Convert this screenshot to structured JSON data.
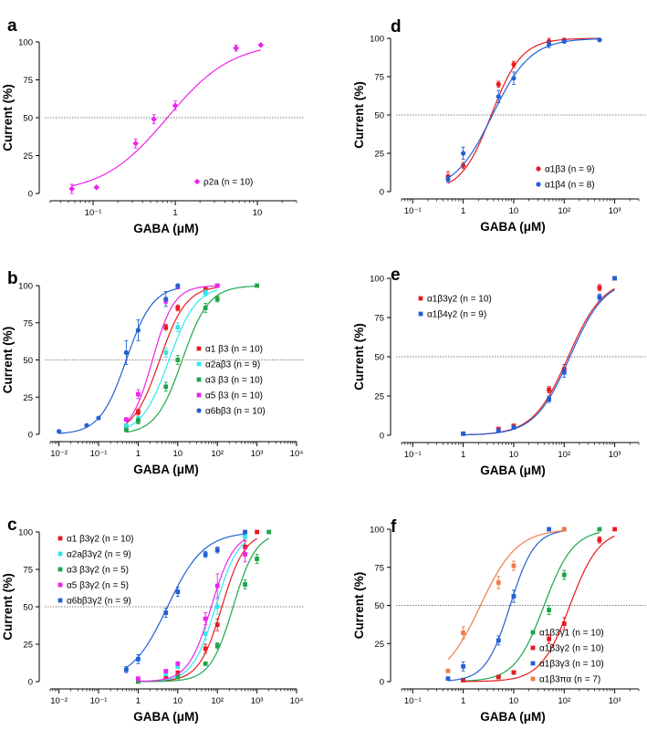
{
  "figure": {
    "colors": {
      "magenta": "#ee22ee",
      "red": "#e8191e",
      "blue": "#2160d4",
      "cyan": "#33e6ec",
      "green": "#1ea54a",
      "orange": "#f07a4a"
    }
  },
  "chart_data": [
    {
      "panel": "a",
      "type": "scatter",
      "xlabel": "GABA (μM)",
      "ylabel": "Current (%)",
      "xscale": "log",
      "xlim": [
        0.03,
        30
      ],
      "ylim": [
        0,
        100
      ],
      "xticks": [
        {
          "value": 0.1,
          "label": "10⁻¹"
        },
        {
          "value": 1,
          "label": "1"
        },
        {
          "value": 10,
          "label": "10"
        }
      ],
      "yticks": [
        0,
        25,
        50,
        75,
        100
      ],
      "reference_line_y": 50,
      "legend_position": "bottom-right",
      "series": [
        {
          "name": "ρ2a (n = 10)",
          "color": "#ee22ee",
          "marker": "diamond",
          "ec50": 0.8,
          "hill": 1.1,
          "points": [
            [
              0.055,
              3,
              3
            ],
            [
              0.11,
              4,
              0
            ],
            [
              0.33,
              33,
              3
            ],
            [
              0.55,
              49,
              3
            ],
            [
              1,
              58,
              3
            ],
            [
              5.5,
              96,
              2
            ],
            [
              11,
              98,
              0
            ]
          ]
        }
      ]
    },
    {
      "panel": "b",
      "type": "scatter",
      "xlabel": "GABA (μM)",
      "ylabel": "Current (%)",
      "xscale": "log",
      "xlim": [
        0.006,
        10000
      ],
      "ylim": [
        0,
        100
      ],
      "xticks": [
        {
          "value": 0.01,
          "label": "10⁻²"
        },
        {
          "value": 0.1,
          "label": "10⁻¹"
        },
        {
          "value": 1,
          "label": "1"
        },
        {
          "value": 10,
          "label": "10"
        },
        {
          "value": 100,
          "label": "10²"
        },
        {
          "value": 1000,
          "label": "10³"
        },
        {
          "value": 10000,
          "label": "10⁴"
        }
      ],
      "yticks": [
        0,
        25,
        50,
        75,
        100
      ],
      "reference_line_y": 50,
      "legend_position": "bottom-right",
      "series": [
        {
          "name": "α1 β3 (n = 10)",
          "color": "#e8191e",
          "marker": "square",
          "ec50": 3.5,
          "hill": 1.3,
          "points": [
            [
              0.5,
              5,
              0
            ],
            [
              1,
              15,
              2
            ],
            [
              5,
              72,
              2
            ],
            [
              10,
              85,
              2
            ],
            [
              50,
              98,
              1
            ],
            [
              100,
              100,
              0
            ]
          ]
        },
        {
          "name": "α2aβ3 (n = 9)",
          "color": "#33e6ec",
          "marker": "square",
          "ec50": 6,
          "hill": 1.25,
          "points": [
            [
              0.5,
              6,
              0
            ],
            [
              1,
              10,
              2
            ],
            [
              5,
              55,
              3
            ],
            [
              10,
              72,
              3
            ],
            [
              50,
              95,
              2
            ],
            [
              100,
              100,
              0
            ]
          ]
        },
        {
          "name": "α3 β3 (n = 10)",
          "color": "#1ea54a",
          "marker": "square",
          "ec50": 13,
          "hill": 1.3,
          "points": [
            [
              0.5,
              3,
              0
            ],
            [
              1,
              9,
              2
            ],
            [
              5,
              32,
              3
            ],
            [
              10,
              50,
              3
            ],
            [
              50,
              85,
              3
            ],
            [
              100,
              91,
              2
            ],
            [
              1000,
              100,
              0
            ]
          ]
        },
        {
          "name": "α5 β3 (n = 10)",
          "color": "#ee22ee",
          "marker": "square",
          "ec50": 2.3,
          "hill": 1.6,
          "points": [
            [
              0.5,
              10,
              0
            ],
            [
              1,
              27,
              3
            ],
            [
              5,
              90,
              2
            ],
            [
              10,
              99,
              1
            ],
            [
              100,
              100,
              0
            ]
          ]
        },
        {
          "name": "α6bβ3 (n = 10)",
          "color": "#2160d4",
          "marker": "circle",
          "ec50": 0.5,
          "hill": 1.3,
          "points": [
            [
              0.01,
              2,
              0
            ],
            [
              0.05,
              6,
              0
            ],
            [
              0.1,
              11,
              0
            ],
            [
              0.5,
              55,
              8
            ],
            [
              1,
              70,
              7
            ],
            [
              5,
              91,
              5
            ],
            [
              10,
              100,
              0
            ]
          ]
        }
      ]
    },
    {
      "panel": "c",
      "type": "scatter",
      "xlabel": "GABA (μM)",
      "ylabel": "Current (%)",
      "xscale": "log",
      "xlim": [
        0.006,
        10000
      ],
      "ylim": [
        0,
        100
      ],
      "xticks": [
        {
          "value": 0.01,
          "label": "10⁻²"
        },
        {
          "value": 0.1,
          "label": "10⁻¹"
        },
        {
          "value": 1,
          "label": "1"
        },
        {
          "value": 10,
          "label": "10"
        },
        {
          "value": 100,
          "label": "10²"
        },
        {
          "value": 1000,
          "label": "10³"
        },
        {
          "value": 10000,
          "label": "10⁴"
        }
      ],
      "yticks": [
        0,
        25,
        50,
        75,
        100
      ],
      "reference_line_y": 50,
      "legend_position": "top-left",
      "series": [
        {
          "name": "α1 β3γ2 (n = 10)",
          "color": "#e8191e",
          "marker": "square",
          "ec50": 130,
          "hill": 1.5,
          "points": [
            [
              1,
              1,
              0
            ],
            [
              5,
              3,
              0
            ],
            [
              10,
              6,
              0
            ],
            [
              50,
              22,
              3
            ],
            [
              100,
              38,
              4
            ],
            [
              500,
              90,
              4
            ],
            [
              1000,
              100,
              0
            ]
          ]
        },
        {
          "name": "α2aβ3γ2 (n = 9)",
          "color": "#33e6ec",
          "marker": "square",
          "ec50": 90,
          "hill": 1.5,
          "points": [
            [
              1,
              1,
              0
            ],
            [
              5,
              5,
              0
            ],
            [
              10,
              10,
              0
            ],
            [
              50,
              32,
              4
            ],
            [
              100,
              50,
              5
            ],
            [
              500,
              97,
              2
            ]
          ]
        },
        {
          "name": "α3 β3γ2 (n = 5)",
          "color": "#1ea54a",
          "marker": "square",
          "ec50": 250,
          "hill": 1.5,
          "points": [
            [
              1,
              0,
              0
            ],
            [
              10,
              3,
              0
            ],
            [
              50,
              12,
              0
            ],
            [
              100,
              24,
              2
            ],
            [
              500,
              65,
              3
            ],
            [
              1000,
              82,
              3
            ],
            [
              2000,
              100,
              0
            ]
          ]
        },
        {
          "name": "α5 β3γ2 (n = 5)",
          "color": "#ee22ee",
          "marker": "square",
          "ec50": 70,
          "hill": 1.5,
          "points": [
            [
              1,
              2,
              0
            ],
            [
              5,
              7,
              0
            ],
            [
              10,
              12,
              0
            ],
            [
              50,
              42,
              4
            ],
            [
              100,
              64,
              8
            ],
            [
              500,
              85,
              5
            ]
          ]
        },
        {
          "name": "α6bβ3γ2 (n = 9)",
          "color": "#2160d4",
          "marker": "square",
          "ec50": 5.5,
          "hill": 0.95,
          "points": [
            [
              0.5,
              8,
              2
            ],
            [
              1,
              15,
              3
            ],
            [
              5,
              46,
              3
            ],
            [
              10,
              60,
              3
            ],
            [
              50,
              85,
              2
            ],
            [
              100,
              88,
              2
            ],
            [
              500,
              100,
              0
            ]
          ]
        }
      ]
    },
    {
      "panel": "d",
      "type": "scatter",
      "xlabel": "GABA (μM)",
      "ylabel": "Current (%)",
      "xscale": "log",
      "xlim": [
        0.06,
        3000
      ],
      "ylim": [
        0,
        100
      ],
      "xticks": [
        {
          "value": 0.1,
          "label": "10⁻¹"
        },
        {
          "value": 1,
          "label": "1"
        },
        {
          "value": 10,
          "label": "10"
        },
        {
          "value": 100,
          "label": "10²"
        },
        {
          "value": 1000,
          "label": "10³"
        }
      ],
      "yticks": [
        0,
        25,
        50,
        75,
        100
      ],
      "reference_line_y": 50,
      "legend_position": "bottom-right",
      "series": [
        {
          "name": "α1β3 (n = 9)",
          "color": "#e8191e",
          "marker": "circle",
          "ec50": 3.6,
          "hill": 1.45,
          "points": [
            [
              0.5,
              10,
              3
            ],
            [
              1,
              17,
              2
            ],
            [
              5,
              70,
              2
            ],
            [
              10,
              83,
              2
            ],
            [
              50,
              98,
              2
            ],
            [
              100,
              99,
              1
            ],
            [
              500,
              99,
              0
            ]
          ]
        },
        {
          "name": "α1β4 (n = 8)",
          "color": "#2160d4",
          "marker": "circle",
          "ec50": 3.8,
          "hill": 1.15,
          "points": [
            [
              0.5,
              8,
              2
            ],
            [
              1,
              25,
              4
            ],
            [
              5,
              62,
              4
            ],
            [
              10,
              74,
              4
            ],
            [
              50,
              96,
              2
            ],
            [
              100,
              98,
              1
            ],
            [
              500,
              99,
              0
            ]
          ]
        }
      ]
    },
    {
      "panel": "e",
      "type": "scatter",
      "xlabel": "GABA (μM)",
      "ylabel": "Current (%)",
      "xscale": "log",
      "xlim": [
        0.06,
        3000
      ],
      "ylim": [
        0,
        100
      ],
      "xticks": [
        {
          "value": 0.1,
          "label": "10⁻¹"
        },
        {
          "value": 1,
          "label": "1"
        },
        {
          "value": 10,
          "label": "10"
        },
        {
          "value": 100,
          "label": "10²"
        },
        {
          "value": 1000,
          "label": "10³"
        }
      ],
      "yticks": [
        0,
        25,
        50,
        75,
        100
      ],
      "reference_line_y": 50,
      "legend_position": "top-left",
      "series": [
        {
          "name": "α1β3γ2 (n = 10)",
          "color": "#e8191e",
          "marker": "square",
          "ec50": 120,
          "hill": 1.25,
          "points": [
            [
              1,
              1,
              0
            ],
            [
              5,
              4,
              0
            ],
            [
              10,
              6,
              0
            ],
            [
              50,
              29,
              2
            ],
            [
              100,
              42,
              3
            ],
            [
              500,
              94,
              2
            ],
            [
              1000,
              100,
              0
            ]
          ]
        },
        {
          "name": "α1β4γ2 (n = 9)",
          "color": "#2160d4",
          "marker": "square",
          "ec50": 130,
          "hill": 1.25,
          "points": [
            [
              1,
              1,
              0
            ],
            [
              5,
              3,
              0
            ],
            [
              10,
              5,
              0
            ],
            [
              50,
              23,
              2
            ],
            [
              100,
              40,
              3
            ],
            [
              500,
              88,
              2
            ],
            [
              1000,
              100,
              0
            ]
          ]
        }
      ]
    },
    {
      "panel": "f",
      "type": "scatter",
      "xlabel": "GABA (μM)",
      "ylabel": "Current (%)",
      "xscale": "log",
      "xlim": [
        0.06,
        3000
      ],
      "ylim": [
        0,
        100
      ],
      "xticks": [
        {
          "value": 0.1,
          "label": "10⁻¹"
        },
        {
          "value": 1,
          "label": "1"
        },
        {
          "value": 10,
          "label": "10"
        },
        {
          "value": 100,
          "label": "10²"
        },
        {
          "value": 1000,
          "label": "10³"
        }
      ],
      "yticks": [
        0,
        25,
        50,
        75,
        100
      ],
      "reference_line_y": 50,
      "legend_position": "bottom-right",
      "series": [
        {
          "name": "α1β3γ1 (n = 10)",
          "color": "#1ea54a",
          "marker": "square",
          "ec50": 40,
          "hill": 1.5,
          "points": [
            [
              1,
              1,
              0
            ],
            [
              5,
              3,
              0
            ],
            [
              10,
              6,
              0
            ],
            [
              50,
              47,
              3
            ],
            [
              100,
              70,
              3
            ],
            [
              500,
              100,
              0
            ]
          ]
        },
        {
          "name": "α1β3γ2 (n = 10)",
          "color": "#e8191e",
          "marker": "square",
          "ec50": 130,
          "hill": 1.5,
          "points": [
            [
              1,
              1,
              0
            ],
            [
              5,
              3,
              0
            ],
            [
              10,
              6,
              0
            ],
            [
              50,
              28,
              3
            ],
            [
              100,
              38,
              4
            ],
            [
              500,
              93,
              2
            ],
            [
              1000,
              100,
              0
            ]
          ]
        },
        {
          "name": "α1β3γ3 (n = 10)",
          "color": "#2160d4",
          "marker": "square",
          "ec50": 8.5,
          "hill": 1.8,
          "points": [
            [
              0.5,
              2,
              0
            ],
            [
              1,
              10,
              3
            ],
            [
              5,
              27,
              3
            ],
            [
              10,
              56,
              4
            ],
            [
              50,
              100,
              0
            ],
            [
              100,
              100,
              1
            ]
          ]
        },
        {
          "name": "α1β3πα (n = 7)",
          "color": "#f07a4a",
          "marker": "square",
          "ec50": 2.2,
          "hill": 1.2,
          "points": [
            [
              0.5,
              7,
              0
            ],
            [
              1,
              32,
              4
            ],
            [
              5,
              65,
              4
            ],
            [
              10,
              76,
              3
            ],
            [
              100,
              100,
              0
            ]
          ]
        }
      ]
    }
  ]
}
